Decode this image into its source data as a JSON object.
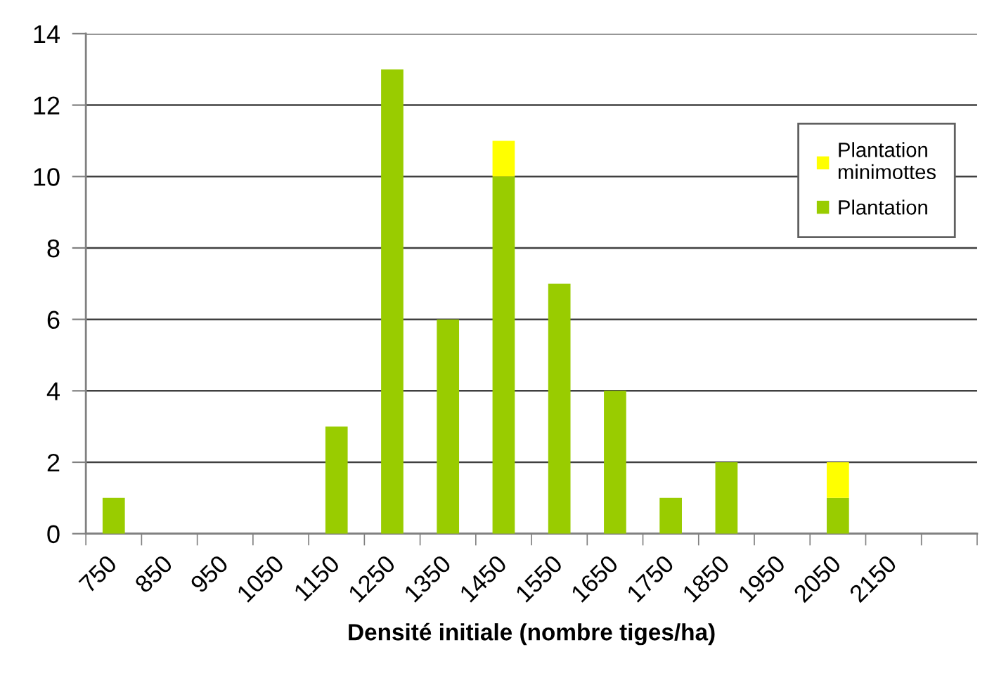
{
  "chart_data": {
    "type": "bar",
    "xlabel": "Densité initiale (nombre tiges/ha)",
    "categories": [
      "750",
      "850",
      "950",
      "1050",
      "1150",
      "1250",
      "1350",
      "1450",
      "1550",
      "1650",
      "1750",
      "1850",
      "1950",
      "2050",
      "2150",
      null
    ],
    "series": [
      {
        "name": "Plantation",
        "color": "#99cc00",
        "values": [
          1,
          0,
          0,
          0,
          3,
          13,
          6,
          10,
          7,
          4,
          1,
          2,
          0,
          1,
          0,
          0
        ]
      },
      {
        "name": "Plantation minimottes",
        "color": "#ffff00",
        "values": [
          0,
          0,
          0,
          0,
          0,
          0,
          0,
          1,
          0,
          0,
          0,
          0,
          0,
          1,
          0,
          0
        ]
      }
    ],
    "stacked": true,
    "ylim": [
      0,
      14
    ],
    "yticks": [
      0,
      2,
      4,
      6,
      8,
      10,
      12,
      14
    ],
    "grid": "y",
    "legend": "top right"
  }
}
